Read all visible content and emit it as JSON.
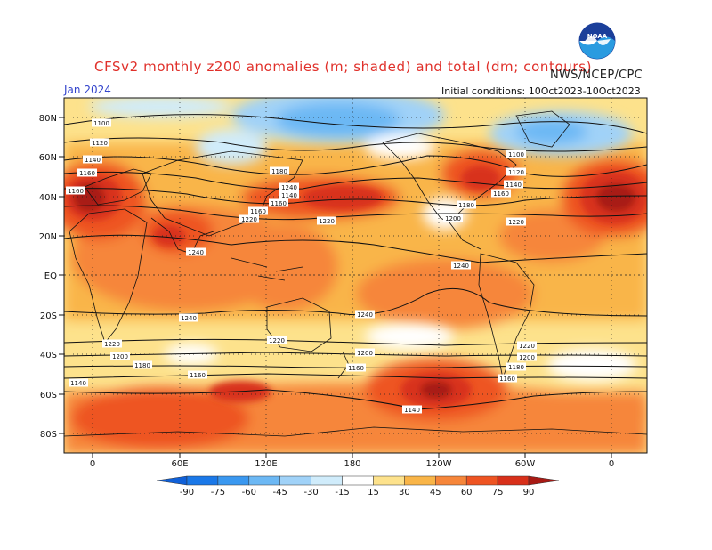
{
  "header": {
    "title": "CFSv2 monthly z200 anomalies (m; shaded) and total (dm; contours)",
    "valid_month": "Jan 2024",
    "organization": "NWS/NCEP/CPC",
    "initial_conditions": "Initial conditions: 10Oct2023-10Oct2023",
    "logo_text": "NOAA"
  },
  "axes": {
    "lat_labels": [
      "80N",
      "60N",
      "40N",
      "20N",
      "EQ",
      "20S",
      "40S",
      "60S",
      "80S"
    ],
    "lon_labels": [
      "0",
      "60E",
      "120E",
      "180",
      "120W",
      "60W",
      "0"
    ]
  },
  "colorbar": {
    "labels": [
      "-90",
      "-75",
      "-60",
      "-45",
      "-30",
      "-15",
      "15",
      "30",
      "45",
      "60",
      "75",
      "90"
    ],
    "colors": [
      "#1060d8",
      "#1a78e8",
      "#3a98f0",
      "#6cb8f4",
      "#a0d2f8",
      "#d0ecfb",
      "#ffffff",
      "#fde28c",
      "#f9b548",
      "#f6863a",
      "#ee5422",
      "#d8301a",
      "#a81a14"
    ]
  },
  "contour_labels": [
    "1100",
    "1120",
    "1140",
    "1160",
    "1160",
    "1160",
    "1180",
    "1200",
    "1220",
    "1220",
    "1240",
    "1240",
    "1100",
    "1120",
    "1140",
    "1160",
    "1180",
    "1200",
    "1220",
    "1140",
    "1160",
    "1180",
    "1200",
    "1220",
    "1240",
    "1120",
    "1140",
    "1160",
    "1180",
    "1200",
    "1180",
    "1160",
    "1140",
    "1200",
    "1220"
  ]
}
